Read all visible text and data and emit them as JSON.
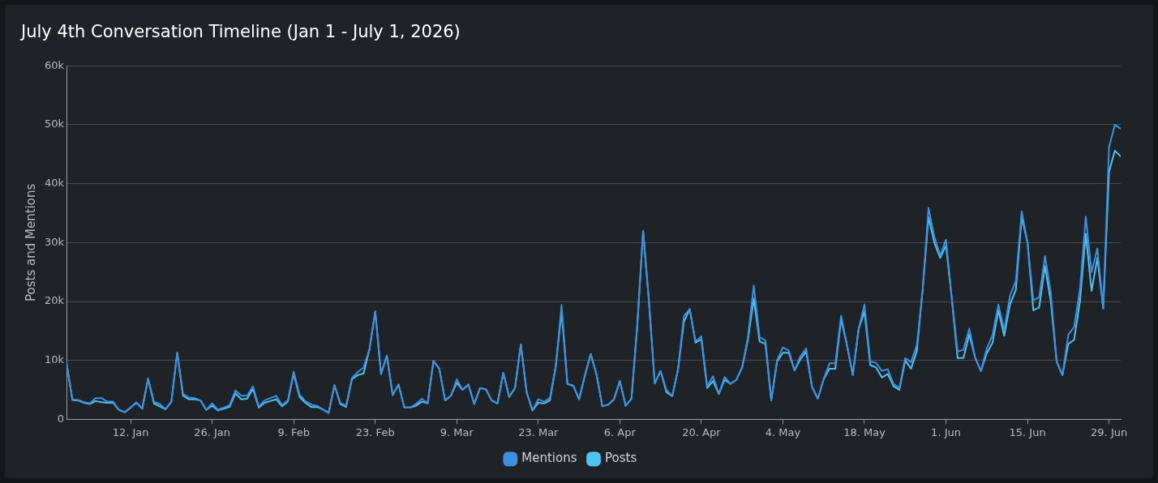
{
  "chart_data": {
    "type": "line",
    "title": "July 4th Conversation Timeline (Jan 1 - July 1, 2026)",
    "ylabel": "Posts and Mentions",
    "x": [
      "2026-01-01",
      "2026-01-02",
      "2026-01-03",
      "2026-01-04",
      "2026-01-05",
      "2026-01-06",
      "2026-01-07",
      "2026-01-08",
      "2026-01-09",
      "2026-01-10",
      "2026-01-11",
      "2026-01-12",
      "2026-01-13",
      "2026-01-14",
      "2026-01-15",
      "2026-01-16",
      "2026-01-17",
      "2026-01-18",
      "2026-01-19",
      "2026-01-20",
      "2026-01-21",
      "2026-01-22",
      "2026-01-23",
      "2026-01-24",
      "2026-01-25",
      "2026-01-26",
      "2026-01-27",
      "2026-01-28",
      "2026-01-29",
      "2026-01-30",
      "2026-01-31",
      "2026-02-01",
      "2026-02-02",
      "2026-02-03",
      "2026-02-04",
      "2026-02-05",
      "2026-02-06",
      "2026-02-07",
      "2026-02-08",
      "2026-02-09",
      "2026-02-10",
      "2026-02-11",
      "2026-02-12",
      "2026-02-13",
      "2026-02-14",
      "2026-02-15",
      "2026-02-16",
      "2026-02-17",
      "2026-02-18",
      "2026-02-19",
      "2026-02-20",
      "2026-02-21",
      "2026-02-22",
      "2026-02-23",
      "2026-02-24",
      "2026-02-25",
      "2026-02-26",
      "2026-02-27",
      "2026-02-28",
      "2026-03-01",
      "2026-03-02",
      "2026-03-03",
      "2026-03-04",
      "2026-03-05",
      "2026-03-06",
      "2026-03-07",
      "2026-03-08",
      "2026-03-09",
      "2026-03-10",
      "2026-03-11",
      "2026-03-12",
      "2026-03-13",
      "2026-03-14",
      "2026-03-15",
      "2026-03-16",
      "2026-03-17",
      "2026-03-18",
      "2026-03-19",
      "2026-03-20",
      "2026-03-21",
      "2026-03-22",
      "2026-03-23",
      "2026-03-24",
      "2026-03-25",
      "2026-03-26",
      "2026-03-27",
      "2026-03-28",
      "2026-03-29",
      "2026-03-30",
      "2026-03-31",
      "2026-04-01",
      "2026-04-02",
      "2026-04-03",
      "2026-04-04",
      "2026-04-05",
      "2026-04-06",
      "2026-04-07",
      "2026-04-08",
      "2026-04-09",
      "2026-04-10",
      "2026-04-11",
      "2026-04-12",
      "2026-04-13",
      "2026-04-14",
      "2026-04-15",
      "2026-04-16",
      "2026-04-17",
      "2026-04-18",
      "2026-04-19",
      "2026-04-20",
      "2026-04-21",
      "2026-04-22",
      "2026-04-23",
      "2026-04-24",
      "2026-04-25",
      "2026-04-26",
      "2026-04-27",
      "2026-04-28",
      "2026-04-29",
      "2026-04-30",
      "2026-05-01",
      "2026-05-02",
      "2026-05-03",
      "2026-05-04",
      "2026-05-05",
      "2026-05-06",
      "2026-05-07",
      "2026-05-08",
      "2026-05-09",
      "2026-05-10",
      "2026-05-11",
      "2026-05-12",
      "2026-05-13",
      "2026-05-14",
      "2026-05-15",
      "2026-05-16",
      "2026-05-17",
      "2026-05-18",
      "2026-05-19",
      "2026-05-20",
      "2026-05-21",
      "2026-05-22",
      "2026-05-23",
      "2026-05-24",
      "2026-05-25",
      "2026-05-26",
      "2026-05-27",
      "2026-05-28",
      "2026-05-29",
      "2026-05-30",
      "2026-05-31",
      "2026-06-01",
      "2026-06-02",
      "2026-06-03",
      "2026-06-04",
      "2026-06-05",
      "2026-06-06",
      "2026-06-07",
      "2026-06-08",
      "2026-06-09",
      "2026-06-10",
      "2026-06-11",
      "2026-06-12",
      "2026-06-13",
      "2026-06-14",
      "2026-06-15",
      "2026-06-16",
      "2026-06-17",
      "2026-06-18",
      "2026-06-19",
      "2026-06-20",
      "2026-06-21",
      "2026-06-22",
      "2026-06-23",
      "2026-06-24",
      "2026-06-25",
      "2026-06-26",
      "2026-06-27",
      "2026-06-28",
      "2026-06-29",
      "2026-06-30",
      "2026-07-01"
    ],
    "series": [
      {
        "name": "Mentions",
        "color": "#3d8fe0",
        "values": [
          9500,
          3400,
          3300,
          2900,
          2700,
          3600,
          3600,
          3000,
          3000,
          1600,
          1200,
          2000,
          2900,
          1800,
          6900,
          3000,
          2600,
          1700,
          3000,
          11300,
          4300,
          3700,
          3600,
          3200,
          1600,
          2700,
          1600,
          2000,
          2400,
          4900,
          4000,
          4000,
          5600,
          2200,
          3200,
          3600,
          4000,
          2400,
          3200,
          8100,
          4200,
          3100,
          2500,
          2300,
          1700,
          1100,
          5800,
          2800,
          2300,
          7000,
          8000,
          8800,
          11800,
          18300,
          7700,
          10800,
          4100,
          5900,
          2000,
          2000,
          2600,
          3500,
          2700,
          9900,
          8600,
          3200,
          4000,
          6800,
          5000,
          5900,
          2600,
          5300,
          5100,
          3200,
          2700,
          7900,
          3800,
          5300,
          12700,
          4600,
          1500,
          3400,
          3000,
          3600,
          9000,
          19400,
          6000,
          5700,
          3400,
          7400,
          11100,
          7600,
          2200,
          2500,
          3400,
          6500,
          2300,
          3500,
          16000,
          32000,
          20000,
          6100,
          8200,
          5000,
          3900,
          8500,
          17500,
          18700,
          13200,
          14100,
          5600,
          7300,
          4300,
          7200,
          6000,
          6700,
          8800,
          14000,
          22700,
          13900,
          13400,
          3200,
          10000,
          12200,
          11700,
          8300,
          10700,
          12000,
          5500,
          3500,
          6800,
          9500,
          9500,
          17600,
          12600,
          7500,
          15300,
          19500,
          9800,
          9600,
          8200,
          8500,
          6000,
          5300,
          10400,
          9700,
          12600,
          22000,
          35900,
          31000,
          27800,
          30500,
          20500,
          11500,
          11800,
          15400,
          10500,
          8200,
          12000,
          14300,
          19500,
          15200,
          21000,
          23500,
          35300,
          30000,
          20200,
          20700,
          27700,
          21500,
          9800,
          7500,
          14300,
          15700,
          22000,
          34400,
          25000,
          29000,
          18800,
          46200,
          50000,
          49300
        ]
      },
      {
        "name": "Posts",
        "color": "#4fc3f0",
        "values": [
          9500,
          3300,
          3200,
          2800,
          2600,
          3100,
          2900,
          2800,
          2800,
          1600,
          1200,
          2000,
          2800,
          1800,
          6900,
          2700,
          2200,
          1700,
          3000,
          11300,
          4000,
          3400,
          3400,
          3200,
          1600,
          2300,
          1500,
          1800,
          2100,
          4400,
          3400,
          3500,
          5200,
          2000,
          2800,
          3100,
          3400,
          2200,
          3000,
          7800,
          3800,
          2800,
          2100,
          2100,
          1700,
          1100,
          5800,
          2600,
          2100,
          6800,
          7500,
          7800,
          11800,
          18300,
          7700,
          10800,
          4100,
          5900,
          2000,
          2000,
          2300,
          3000,
          2700,
          9900,
          8600,
          3200,
          4000,
          6200,
          5000,
          5900,
          2600,
          5300,
          5100,
          3200,
          2700,
          7900,
          3800,
          5300,
          12700,
          4600,
          1500,
          2800,
          2700,
          3200,
          9000,
          18300,
          6000,
          5700,
          3400,
          7400,
          11100,
          7600,
          2200,
          2500,
          3400,
          6500,
          2300,
          3500,
          16000,
          32000,
          20000,
          6100,
          8200,
          4600,
          3900,
          8500,
          16500,
          18700,
          13000,
          13600,
          5300,
          6500,
          4300,
          6700,
          6000,
          6700,
          8800,
          13500,
          20500,
          13200,
          12800,
          3200,
          9800,
          11300,
          11300,
          8300,
          10200,
          11500,
          5500,
          3500,
          6800,
          8600,
          8600,
          17000,
          12600,
          7500,
          15300,
          18300,
          9200,
          8800,
          7100,
          7700,
          5600,
          5000,
          10000,
          8600,
          11600,
          22000,
          34300,
          30000,
          27400,
          29500,
          20500,
          10400,
          10400,
          14400,
          10500,
          8200,
          11200,
          13000,
          18500,
          14200,
          19500,
          22000,
          34300,
          30000,
          18500,
          19000,
          26000,
          20000,
          9800,
          7500,
          12800,
          13500,
          20000,
          31500,
          21800,
          27400,
          18800,
          42000,
          45600,
          44600
        ]
      }
    ],
    "xlim": [
      "2026-01-01",
      "2026-07-01"
    ],
    "xticks": [
      {
        "value": "2026-01-12",
        "label": "12. Jan"
      },
      {
        "value": "2026-01-26",
        "label": "26. Jan"
      },
      {
        "value": "2026-02-09",
        "label": "9. Feb"
      },
      {
        "value": "2026-02-23",
        "label": "23. Feb"
      },
      {
        "value": "2026-03-09",
        "label": "9. Mar"
      },
      {
        "value": "2026-03-23",
        "label": "23. Mar"
      },
      {
        "value": "2026-04-06",
        "label": "6. Apr"
      },
      {
        "value": "2026-04-20",
        "label": "20. Apr"
      },
      {
        "value": "2026-05-04",
        "label": "4. May"
      },
      {
        "value": "2026-05-18",
        "label": "18. May"
      },
      {
        "value": "2026-06-01",
        "label": "1. Jun"
      },
      {
        "value": "2026-06-15",
        "label": "15. Jun"
      },
      {
        "value": "2026-06-29",
        "label": "29. Jun"
      }
    ],
    "ylim": [
      0,
      60000
    ],
    "yticks": [
      0,
      {
        "value": 10000,
        "label": "10k"
      },
      {
        "value": 20000,
        "label": "20k"
      },
      {
        "value": 30000,
        "label": "30k"
      },
      {
        "value": 40000,
        "label": "40k"
      },
      {
        "value": 50000,
        "label": "50k"
      },
      {
        "value": 60000,
        "label": "60k"
      }
    ],
    "grid": "y",
    "legend": "bottom",
    "marker": "none",
    "line_style": "solid"
  }
}
